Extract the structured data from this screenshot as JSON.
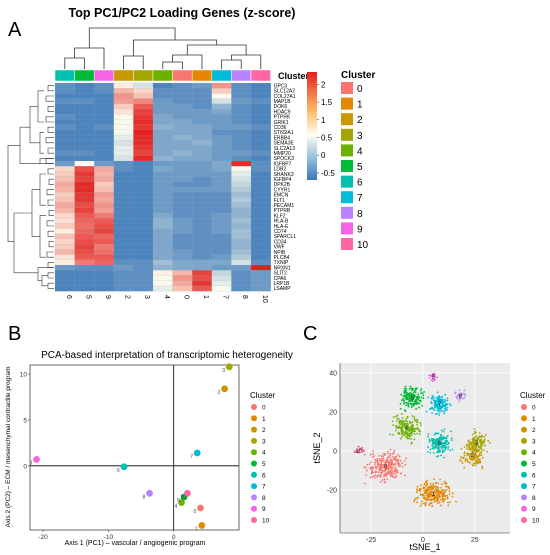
{
  "panels": {
    "A": "A",
    "B": "B",
    "C": "C"
  },
  "colors": {
    "clusters": [
      "#F8766D",
      "#E58700",
      "#C99800",
      "#A3A500",
      "#6BB100",
      "#00BA38",
      "#00C0AF",
      "#00BCD8",
      "#B983FF",
      "#F564E3",
      "#FF67A4"
    ],
    "heatmap_clusters": [
      "#F8766D",
      "#E58700",
      "#C99800",
      "#F564E3",
      "#FF67A4",
      "#00BA38",
      "#00BCD8",
      "#E58700",
      "#00C0AF",
      "#6BB100",
      "#00BCD8"
    ],
    "heat_low": "#3B78B8",
    "heat_mid": "#FFFFEF",
    "heat_high": "#E4201C"
  },
  "chart_data": [
    {
      "type": "heatmap",
      "title": "Top PC1/PC2 Loading Genes (z-score)",
      "annotation_label": "Cluster",
      "legend_title": "Cluster",
      "columns": [
        "6",
        "5",
        "9",
        "2",
        "3",
        "4",
        "0",
        "1",
        "7",
        "8",
        "10"
      ],
      "column_cluster_index": [
        6,
        5,
        9,
        2,
        3,
        4,
        0,
        1,
        7,
        8,
        10
      ],
      "genes": [
        "GPC3",
        "SLC12A2",
        "COL27A1",
        "MAP1B",
        "DOK6",
        "HDAC9",
        "PTPRK",
        "GRIK1",
        "CD36",
        "ST6SIA1",
        "ERBB4",
        "SEMA3E",
        "SLC2A13",
        "MMP20",
        "SPOCK3",
        "IGFBP7",
        "LDB2",
        "SHANK3",
        "IGFBP4",
        "DPK2B",
        "CYYR1",
        "EMCN",
        "FLT1",
        "PECAM1",
        "PTPRB",
        "KLF2",
        "HLA-B",
        "HLA-E",
        "CD74",
        "SPARCL1",
        "CD34",
        "VWF",
        "NPIB",
        "PLCB4",
        "TXNIP",
        "NRXN1",
        "SLIT2",
        "CPA6",
        "LRP1B",
        "LSAMP"
      ],
      "values": [
        [
          -0.5,
          -0.6,
          -0.5,
          0.6,
          0.2,
          -0.6,
          -0.5,
          -0.4,
          1.4,
          -0.5,
          -0.6
        ],
        [
          -0.5,
          -0.6,
          -0.5,
          1.1,
          0.8,
          -0.5,
          -0.5,
          -0.5,
          0.9,
          -0.5,
          -0.6
        ],
        [
          -0.6,
          -0.6,
          -0.6,
          1.4,
          1.0,
          -0.5,
          -0.5,
          -0.5,
          0.5,
          -0.5,
          -0.6
        ],
        [
          -0.5,
          -0.5,
          -0.6,
          1.3,
          1.5,
          -0.4,
          -0.5,
          -0.5,
          0.2,
          -0.4,
          -0.5
        ],
        [
          -0.6,
          -0.6,
          -0.6,
          0.9,
          1.9,
          -0.4,
          -0.4,
          -0.5,
          -0.2,
          -0.5,
          -0.6
        ],
        [
          -0.6,
          -0.6,
          -0.6,
          0.7,
          2.1,
          -0.4,
          -0.4,
          -0.4,
          -0.3,
          -0.5,
          -0.6
        ],
        [
          -0.5,
          -0.6,
          -0.6,
          0.5,
          2.2,
          -0.3,
          -0.4,
          -0.4,
          -0.4,
          -0.5,
          -0.6
        ],
        [
          -0.6,
          -0.6,
          -0.6,
          0.4,
          2.3,
          -0.3,
          -0.3,
          -0.4,
          -0.4,
          -0.5,
          -0.6
        ],
        [
          -0.5,
          -0.6,
          -0.5,
          0.5,
          2.2,
          -0.2,
          -0.3,
          -0.3,
          -0.4,
          -0.4,
          -0.5
        ],
        [
          -0.6,
          -0.6,
          -0.6,
          0.4,
          2.4,
          -0.3,
          -0.3,
          -0.3,
          -0.5,
          -0.5,
          -0.6
        ],
        [
          -0.6,
          -0.6,
          -0.6,
          0.3,
          2.3,
          -0.3,
          -0.2,
          -0.3,
          -0.4,
          -0.5,
          -0.6
        ],
        [
          -0.6,
          -0.6,
          -0.6,
          0.2,
          2.3,
          -0.3,
          -0.3,
          -0.2,
          -0.4,
          -0.5,
          -0.6
        ],
        [
          -0.6,
          -0.6,
          -0.6,
          0.3,
          2.2,
          -0.3,
          -0.3,
          -0.3,
          -0.4,
          -0.5,
          -0.6
        ],
        [
          -0.5,
          -0.5,
          -0.6,
          0.3,
          2.1,
          -0.3,
          -0.2,
          -0.3,
          -0.4,
          -0.4,
          -0.5
        ],
        [
          -0.6,
          -0.6,
          -0.6,
          0.2,
          2.3,
          -0.2,
          -0.3,
          -0.3,
          -0.4,
          -0.5,
          -0.6
        ],
        [
          -0.4,
          0.5,
          -0.4,
          -0.5,
          -0.6,
          -0.4,
          -0.4,
          -0.4,
          -0.3,
          2.3,
          -0.5
        ],
        [
          0.8,
          2.0,
          1.2,
          -0.5,
          -0.6,
          -0.3,
          -0.4,
          -0.4,
          -0.3,
          0.4,
          -0.5
        ],
        [
          0.9,
          2.2,
          1.1,
          -0.6,
          -0.6,
          -0.4,
          -0.4,
          -0.4,
          -0.4,
          0.3,
          -0.6
        ],
        [
          1.0,
          2.1,
          1.2,
          -0.6,
          -0.6,
          -0.4,
          -0.4,
          -0.5,
          -0.4,
          0.2,
          -0.6
        ],
        [
          1.2,
          2.3,
          0.9,
          -0.6,
          -0.6,
          -0.4,
          -0.5,
          -0.5,
          -0.4,
          0.1,
          -0.6
        ],
        [
          1.1,
          2.3,
          1.0,
          -0.6,
          -0.6,
          -0.4,
          -0.4,
          -0.4,
          -0.4,
          0.0,
          -0.6
        ],
        [
          0.9,
          2.2,
          1.3,
          -0.6,
          -0.6,
          -0.4,
          -0.5,
          -0.5,
          -0.5,
          -0.1,
          -0.6
        ],
        [
          1.0,
          2.2,
          1.2,
          -0.6,
          -0.6,
          -0.4,
          -0.5,
          -0.5,
          -0.5,
          0.0,
          -0.6
        ],
        [
          1.2,
          2.0,
          1.4,
          -0.6,
          -0.6,
          -0.4,
          -0.5,
          -0.5,
          -0.5,
          -0.1,
          -0.6
        ],
        [
          1.1,
          2.1,
          1.3,
          -0.6,
          -0.6,
          -0.4,
          -0.5,
          -0.5,
          -0.5,
          -0.2,
          -0.6
        ],
        [
          0.8,
          1.9,
          1.6,
          -0.6,
          -0.6,
          -0.3,
          -0.5,
          -0.5,
          -0.4,
          -0.2,
          -0.6
        ],
        [
          0.7,
          1.8,
          1.9,
          -0.6,
          -0.6,
          -0.2,
          -0.4,
          -0.5,
          -0.4,
          -0.1,
          -0.6
        ],
        [
          0.9,
          1.7,
          2.0,
          -0.6,
          -0.6,
          -0.2,
          -0.4,
          -0.5,
          -0.4,
          -0.2,
          -0.6
        ],
        [
          0.6,
          1.8,
          2.1,
          -0.6,
          -0.6,
          -0.3,
          -0.4,
          -0.5,
          -0.4,
          -0.1,
          -0.6
        ],
        [
          1.0,
          1.9,
          1.8,
          -0.6,
          -0.6,
          -0.3,
          -0.5,
          -0.5,
          -0.5,
          -0.1,
          -0.6
        ],
        [
          0.8,
          2.0,
          1.9,
          -0.6,
          -0.6,
          -0.3,
          -0.5,
          -0.5,
          -0.5,
          -0.2,
          -0.6
        ],
        [
          0.9,
          2.1,
          1.6,
          -0.6,
          -0.6,
          -0.3,
          -0.5,
          -0.5,
          -0.5,
          -0.2,
          -0.6
        ],
        [
          1.1,
          2.0,
          1.7,
          -0.6,
          -0.6,
          -0.3,
          -0.4,
          -0.5,
          -0.5,
          -0.1,
          -0.6
        ],
        [
          0.7,
          1.9,
          1.9,
          -0.6,
          -0.6,
          -0.3,
          -0.4,
          -0.5,
          -0.4,
          0.0,
          -0.6
        ],
        [
          0.6,
          1.6,
          1.8,
          -0.5,
          -0.5,
          -0.1,
          -0.3,
          -0.3,
          -0.3,
          0.2,
          -0.5
        ],
        [
          -0.4,
          -0.5,
          -0.5,
          -0.4,
          -0.5,
          -0.2,
          -0.3,
          -0.3,
          -0.4,
          -0.4,
          2.4
        ],
        [
          -0.6,
          -0.6,
          -0.6,
          -0.5,
          -0.5,
          0.6,
          1.1,
          2.1,
          0.1,
          -0.5,
          -0.4
        ],
        [
          -0.6,
          -0.6,
          -0.6,
          -0.5,
          -0.5,
          0.4,
          1.4,
          2.0,
          0.2,
          -0.5,
          -0.4
        ],
        [
          -0.6,
          -0.6,
          -0.6,
          -0.5,
          -0.5,
          0.5,
          1.2,
          2.2,
          0.3,
          -0.5,
          -0.4
        ],
        [
          -0.6,
          -0.6,
          -0.6,
          -0.5,
          -0.5,
          0.3,
          1.0,
          1.9,
          0.4,
          -0.5,
          -0.4
        ]
      ],
      "colorbar_ticks": [
        2,
        1.5,
        1,
        0.5,
        0,
        -0.5
      ],
      "zlim": [
        -0.7,
        2.4
      ],
      "legend_entries": [
        "0",
        "1",
        "2",
        "3",
        "4",
        "5",
        "6",
        "7",
        "8",
        "9",
        "10"
      ]
    },
    {
      "type": "scatter",
      "title": "PCA-based interpretation of transcriptomic heterogeneity",
      "xlabel": "Axis 1 (PC1) – vascular / angiogenic program",
      "ylabel": "Axis 2 (PC2) – ECM / mesenchymal contractile program",
      "xlim": [
        -22,
        10
      ],
      "ylim": [
        -7,
        11
      ],
      "x_ticks": [
        -20,
        -10,
        0
      ],
      "y_ticks": [
        0,
        5,
        10
      ],
      "legend_title": "Cluster",
      "points": [
        {
          "cluster": "0",
          "x": 4.1,
          "y": -4.6
        },
        {
          "cluster": "1",
          "x": 4.3,
          "y": -6.5
        },
        {
          "cluster": "2",
          "x": 7.8,
          "y": 8.4
        },
        {
          "cluster": "3",
          "x": 8.5,
          "y": 10.8
        },
        {
          "cluster": "4",
          "x": 1.2,
          "y": -4.0
        },
        {
          "cluster": "5",
          "x": 1.6,
          "y": -3.4
        },
        {
          "cluster": "6",
          "x": -7.6,
          "y": -0.1
        },
        {
          "cluster": "7",
          "x": 3.6,
          "y": 1.4
        },
        {
          "cluster": "8",
          "x": -3.7,
          "y": -3.0
        },
        {
          "cluster": "9",
          "x": -21.0,
          "y": 0.7
        },
        {
          "cluster": "10",
          "x": 2.1,
          "y": -3.0
        }
      ],
      "legend_entries": [
        "0",
        "1",
        "2",
        "3",
        "4",
        "5",
        "6",
        "7",
        "8",
        "9",
        "10"
      ]
    },
    {
      "type": "scatter",
      "title": "",
      "xlabel": "tSNE_1",
      "ylabel": "tSNE_2",
      "xlim": [
        -40,
        42
      ],
      "ylim": [
        -42,
        45
      ],
      "x_ticks": [
        -25,
        0,
        25
      ],
      "y_ticks": [
        40,
        20,
        0,
        -20
      ],
      "legend_title": "Cluster",
      "cluster_centers": [
        {
          "cluster": "0",
          "x": -18,
          "y": -8
        },
        {
          "cluster": "1",
          "x": 5,
          "y": -22
        },
        {
          "cluster": "2",
          "x": 24,
          "y": -2
        },
        {
          "cluster": "3",
          "x": 26,
          "y": 4
        },
        {
          "cluster": "4",
          "x": -8,
          "y": 12
        },
        {
          "cluster": "5",
          "x": -5,
          "y": 27
        },
        {
          "cluster": "6",
          "x": 8,
          "y": 4
        },
        {
          "cluster": "7",
          "x": 8,
          "y": 24
        },
        {
          "cluster": "8",
          "x": 18,
          "y": 28
        },
        {
          "cluster": "9",
          "x": 5,
          "y": 38
        },
        {
          "cluster": "10",
          "x": -31,
          "y": 0
        }
      ],
      "point_labels": [
        "9",
        "8",
        "7",
        "5",
        "4",
        "2",
        "3",
        "0",
        "1",
        "10",
        "6"
      ],
      "legend_entries": [
        "0",
        "1",
        "2",
        "3",
        "4",
        "5",
        "6",
        "7",
        "8",
        "9",
        "10"
      ]
    }
  ]
}
